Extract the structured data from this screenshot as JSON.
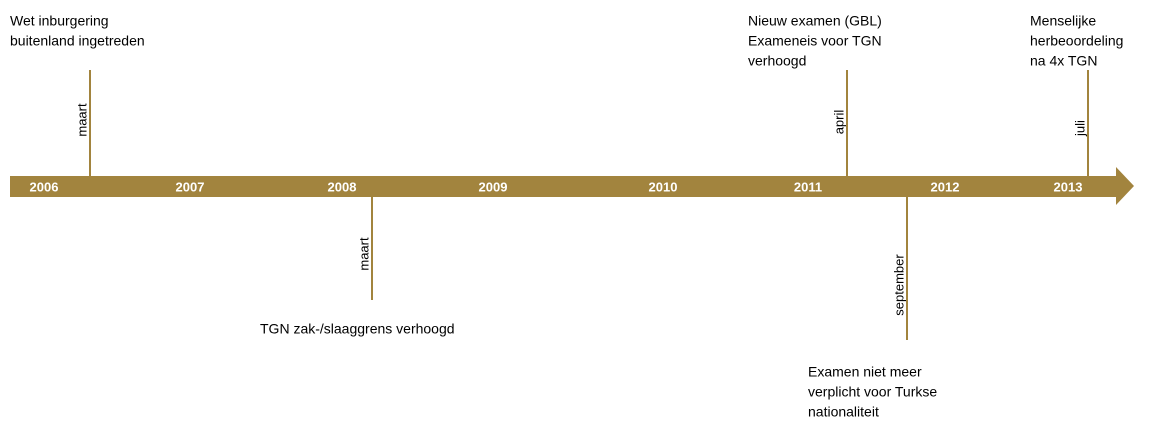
{
  "years": [
    "2006",
    "2007",
    "2008",
    "2009",
    "2010",
    "2011",
    "2012",
    "2013"
  ],
  "events": [
    {
      "month": "maart",
      "label": [
        "Wet inburgering",
        "buitenland ingetreden"
      ]
    },
    {
      "month": "maart",
      "label": [
        "TGN zak-/slaaggrens verhoogd"
      ]
    },
    {
      "month": "april",
      "label": [
        "Nieuw examen (GBL)",
        "Exameneis voor TGN",
        "verhoogd"
      ]
    },
    {
      "month": "september",
      "label": [
        "Examen niet meer",
        "verplicht voor Turkse",
        "nationaliteit"
      ]
    },
    {
      "month": "juli",
      "label": [
        "Menselijke",
        "herbeoordeling",
        "na 4x TGN"
      ]
    }
  ]
}
